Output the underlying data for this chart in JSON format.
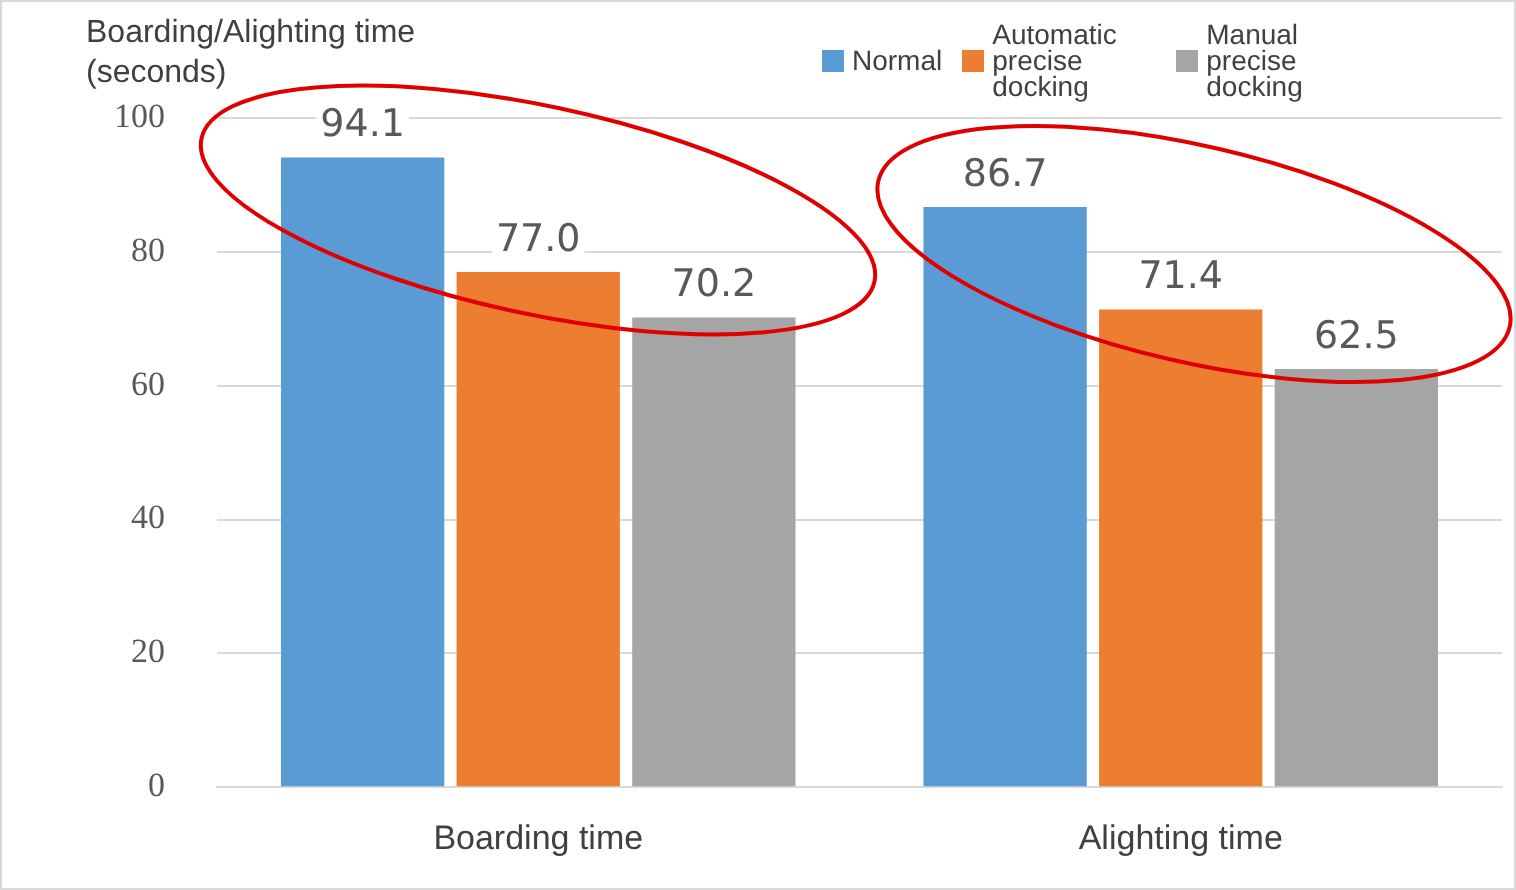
{
  "chart_data": {
    "type": "bar",
    "ylabel": "Boarding/Alighting time (seconds)",
    "categories": [
      "Boarding time",
      "Alighting time"
    ],
    "series": [
      {
        "name": "Normal",
        "color": "#5b9bd5",
        "values": [
          94.1,
          86.7
        ]
      },
      {
        "name": "Automatic precise docking",
        "color": "#ed7d31",
        "values": [
          77.0,
          71.4
        ]
      },
      {
        "name": "Manual precise docking",
        "color": "#a5a5a5",
        "values": [
          70.2,
          62.5
        ]
      }
    ],
    "value_labels": [
      [
        "94.1",
        "86.7"
      ],
      [
        "77.0",
        "71.4"
      ],
      [
        "70.2",
        "62.5"
      ]
    ],
    "ylim": [
      0,
      100
    ],
    "yticks": [
      0,
      20,
      40,
      60,
      80,
      100
    ],
    "grid": "y",
    "legend": "top right"
  }
}
